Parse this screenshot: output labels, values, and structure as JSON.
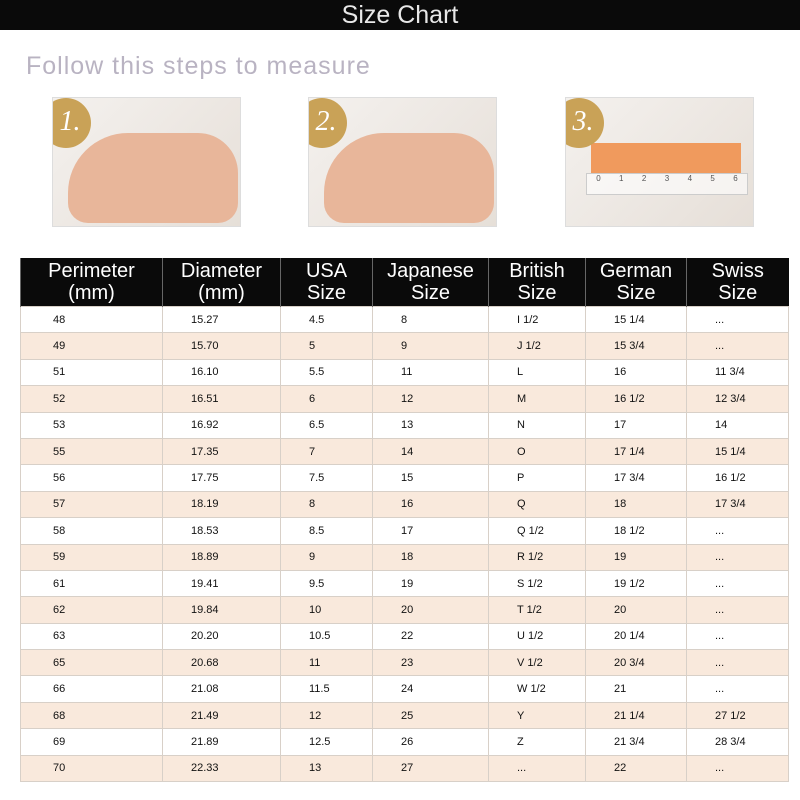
{
  "title": "Size Chart",
  "subtitle": "Follow this steps to measure",
  "steps": [
    {
      "number": "1."
    },
    {
      "number": "2."
    },
    {
      "number": "3."
    }
  ],
  "ruler_ticks": [
    "0",
    "1",
    "2",
    "3",
    "4",
    "5",
    "6"
  ],
  "headers": [
    [
      "Perimeter",
      "(mm)"
    ],
    [
      "Diameter",
      "(mm)"
    ],
    [
      "USA",
      "Size"
    ],
    [
      "Japanese",
      "Size"
    ],
    [
      "British",
      "Size"
    ],
    [
      "German",
      "Size"
    ],
    [
      "Swiss",
      "Size"
    ]
  ],
  "rows": [
    [
      "48",
      "15.27",
      "4.5",
      "8",
      "I 1/2",
      "15 1/4",
      "..."
    ],
    [
      "49",
      "15.70",
      "5",
      "9",
      "J 1/2",
      "15 3/4",
      "..."
    ],
    [
      "51",
      "16.10",
      "5.5",
      "11",
      "L",
      "16",
      "11 3/4"
    ],
    [
      "52",
      "16.51",
      "6",
      "12",
      "M",
      "16 1/2",
      "12 3/4"
    ],
    [
      "53",
      "16.92",
      "6.5",
      "13",
      "N",
      "17",
      "14"
    ],
    [
      "55",
      "17.35",
      "7",
      "14",
      "O",
      "17 1/4",
      "15 1/4"
    ],
    [
      "56",
      "17.75",
      "7.5",
      "15",
      "P",
      "17 3/4",
      "16 1/2"
    ],
    [
      "57",
      "18.19",
      "8",
      "16",
      "Q",
      "18",
      "17 3/4"
    ],
    [
      "58",
      "18.53",
      "8.5",
      "17",
      "Q 1/2",
      "18 1/2",
      "..."
    ],
    [
      "59",
      "18.89",
      "9",
      "18",
      "R 1/2",
      "19",
      "..."
    ],
    [
      "61",
      "19.41",
      "9.5",
      "19",
      "S 1/2",
      "19 1/2",
      "..."
    ],
    [
      "62",
      "19.84",
      "10",
      "20",
      "T 1/2",
      "20",
      "..."
    ],
    [
      "63",
      "20.20",
      "10.5",
      "22",
      "U 1/2",
      "20 1/4",
      "..."
    ],
    [
      "65",
      "20.68",
      "11",
      "23",
      "V 1/2",
      "20 3/4",
      "..."
    ],
    [
      "66",
      "21.08",
      "11.5",
      "24",
      "W 1/2",
      "21",
      "..."
    ],
    [
      "68",
      "21.49",
      "12",
      "25",
      "Y",
      "21 1/4",
      "27 1/2"
    ],
    [
      "69",
      "21.89",
      "12.5",
      "26",
      "Z",
      "21 3/4",
      "28 3/4"
    ],
    [
      "70",
      "22.33",
      "13",
      "27",
      "...",
      "22",
      "..."
    ]
  ]
}
